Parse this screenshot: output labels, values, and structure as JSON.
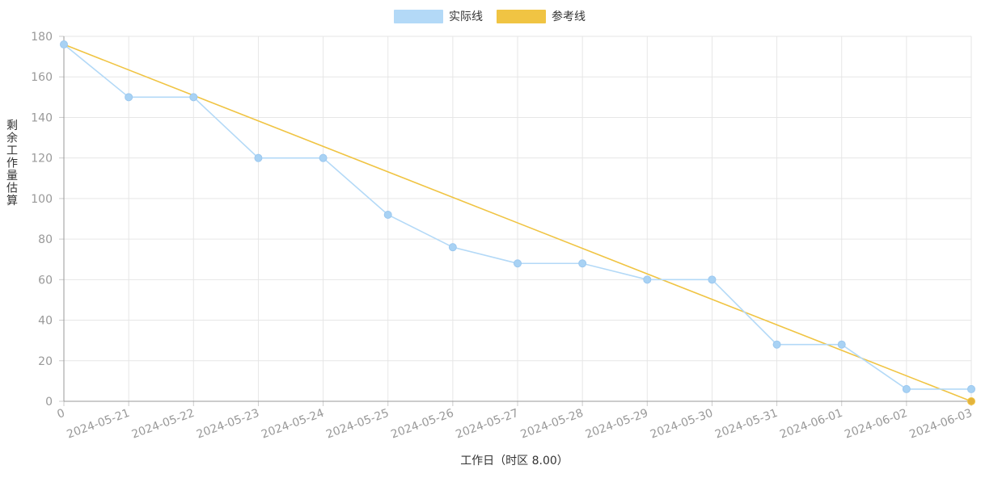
{
  "chart_data": {
    "type": "line",
    "title": "",
    "xlabel": "工作日（时区 8.00）",
    "ylabel": "剩余工作量估算",
    "categories": [
      "0",
      "2024-05-21",
      "2024-05-22",
      "2024-05-23",
      "2024-05-24",
      "2024-05-25",
      "2024-05-26",
      "2024-05-27",
      "2024-05-28",
      "2024-05-29",
      "2024-05-30",
      "2024-05-31",
      "2024-06-01",
      "2024-06-02",
      "2024-06-03"
    ],
    "ylim": [
      0,
      180
    ],
    "yticks": [
      0,
      20,
      40,
      60,
      80,
      100,
      120,
      140,
      160,
      180
    ],
    "grid": true,
    "legend_position": "top-center",
    "series": [
      {
        "name": "实际线",
        "color": "#b3d9f7",
        "values": [
          176,
          150,
          150,
          120,
          120,
          92,
          76,
          68,
          68,
          60,
          60,
          28,
          28,
          6,
          6
        ]
      },
      {
        "name": "参考线",
        "color": "#f0c443",
        "values": [
          176,
          null,
          null,
          null,
          null,
          null,
          null,
          null,
          null,
          null,
          null,
          null,
          null,
          null,
          0
        ]
      }
    ]
  }
}
